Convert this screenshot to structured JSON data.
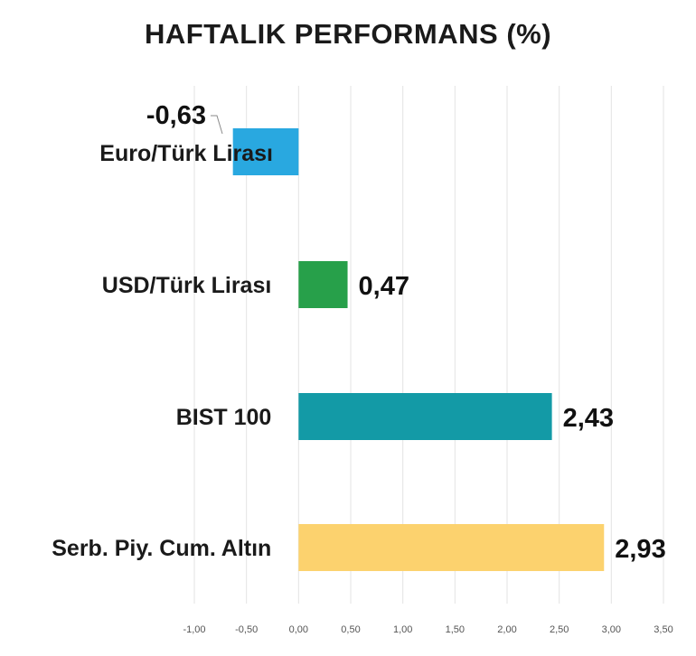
{
  "chart_data": {
    "type": "bar",
    "orientation": "horizontal",
    "title": "HAFTALIK PERFORMANS (%)",
    "categories": [
      "Euro/Türk Lirası",
      "USD/Türk Lirası",
      "BIST 100",
      "Serb. Piy. Cum. Altın"
    ],
    "values": [
      -0.63,
      0.47,
      2.43,
      2.93
    ],
    "value_labels": [
      "-0,63",
      "0,47",
      "2,43",
      "2,93"
    ],
    "colors": [
      "#29a8e0",
      "#27a04a",
      "#139aa6",
      "#fcd26e"
    ],
    "xlim": [
      -1.0,
      3.5
    ],
    "xticks": [
      -1.0,
      -0.5,
      0.0,
      0.5,
      1.0,
      1.5,
      2.0,
      2.5,
      3.0,
      3.5
    ],
    "xtick_labels": [
      "-1,00",
      "-0,50",
      "0,00",
      "0,50",
      "1,00",
      "1,50",
      "2,00",
      "2,50",
      "3,00",
      "3,50"
    ],
    "grid": true,
    "legend": "none"
  }
}
